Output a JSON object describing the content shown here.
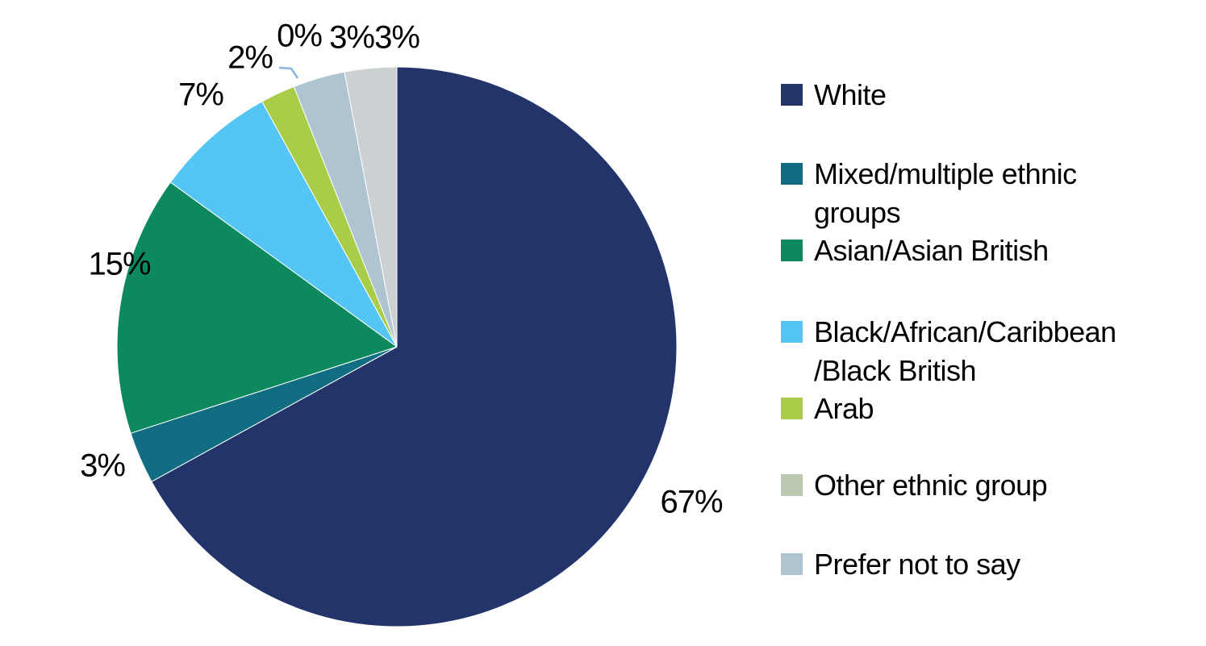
{
  "chart_data": {
    "type": "pie",
    "title": "",
    "start_angle_deg": -90,
    "direction": "clockwise",
    "total_percent": 100,
    "slices": [
      {
        "label": "White",
        "value_percent": 67,
        "data_label": "67%",
        "color": "#22346A"
      },
      {
        "label": "Mixed/multiple ethnic groups",
        "value_percent": 3,
        "data_label": "3%",
        "color": "#116E82"
      },
      {
        "label": "Asian/Asian British",
        "value_percent": 15,
        "data_label": "15%",
        "color": "#0C8A5E"
      },
      {
        "label": "Black/African/Caribbean/Black British",
        "value_percent": 7,
        "data_label": "7%",
        "color": "#55C5F3"
      },
      {
        "label": "Arab",
        "value_percent": 2,
        "data_label": "2%",
        "color": "#AACD49"
      },
      {
        "label": "Other ethnic group",
        "value_percent": 0,
        "data_label": "0%",
        "color": "#BDC8B1"
      },
      {
        "label": "Prefer not to say",
        "value_percent": 3,
        "data_label": "3%",
        "color": "#AEC4D1"
      },
      {
        "label": "",
        "value_percent": 3,
        "data_label": "3%",
        "color": "#CBD0D3"
      }
    ],
    "legend": {
      "position": "right",
      "entries": [
        {
          "lines": [
            "White"
          ],
          "color": "#22346A"
        },
        {
          "lines": [
            "Mixed/multiple ethnic",
            "groups"
          ],
          "color": "#116E82"
        },
        {
          "lines": [
            "Asian/Asian British"
          ],
          "color": "#0C8A5E"
        },
        {
          "lines": [
            "Black/African/Caribbean",
            "/Black British"
          ],
          "color": "#55C5F3"
        },
        {
          "lines": [
            "Arab"
          ],
          "color": "#AACD49"
        },
        {
          "lines": [
            "Other ethnic group"
          ],
          "color": "#BDC8B1"
        },
        {
          "lines": [
            "Prefer not to say"
          ],
          "color": "#AEC4D1"
        }
      ]
    },
    "leader_line_color": "#8EB4E3"
  }
}
